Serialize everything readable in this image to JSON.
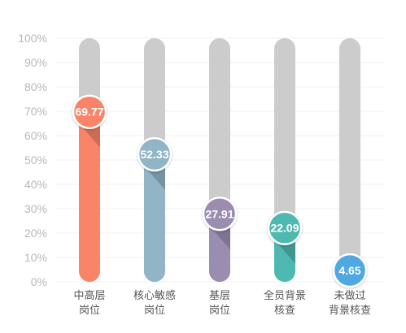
{
  "chart_data": {
    "type": "bar",
    "categories": [
      [
        "中高层",
        "岗位"
      ],
      [
        "核心敏感",
        "岗位"
      ],
      [
        "基层",
        "岗位"
      ],
      [
        "全员背景",
        "核查"
      ],
      [
        "未做过",
        "背景核查"
      ]
    ],
    "values": [
      69.77,
      52.33,
      27.91,
      22.09,
      4.65
    ],
    "value_labels": [
      "69.77",
      "52.33",
      "27.91",
      "22.09",
      "4.65"
    ],
    "ylim": [
      0,
      100
    ],
    "yticks": [
      "0%",
      "10%",
      "20%",
      "30%",
      "40%",
      "50%",
      "60%",
      "70%",
      "80%",
      "90%",
      "100%"
    ],
    "grid": true,
    "colors": [
      "#fa8468",
      "#91b4c6",
      "#9a8db0",
      "#4eb9b0",
      "#4fa8e0"
    ],
    "track_color": "#cccccc"
  }
}
